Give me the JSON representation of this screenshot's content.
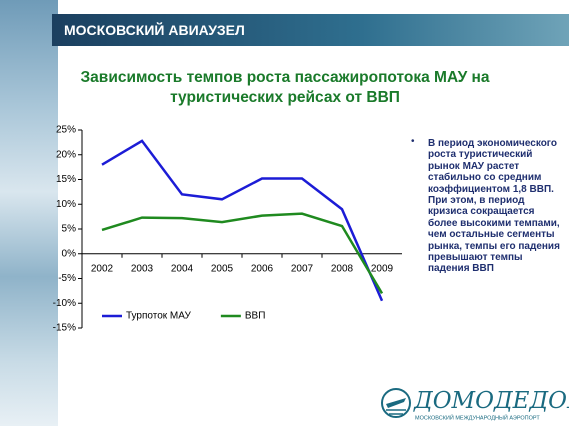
{
  "header": {
    "title": "МОСКОВСКИЙ АВИАУЗЕЛ"
  },
  "chart_data": {
    "type": "line",
    "title": "Зависимость темпов роста пассажиропотока МАУ на туристических рейсах  от ВВП",
    "categories": [
      "2002",
      "2003",
      "2004",
      "2005",
      "2006",
      "2007",
      "2008",
      "2009"
    ],
    "series": [
      {
        "name": "Турпоток МАУ",
        "color": "#1c1cd6",
        "values": [
          18,
          22.8,
          12,
          11,
          15.2,
          15.2,
          9,
          -9.5
        ]
      },
      {
        "name": "ВВП",
        "color": "#1f8a1f",
        "values": [
          4.8,
          7.3,
          7.2,
          6.4,
          7.7,
          8.1,
          5.6,
          -8
        ]
      }
    ],
    "ylim": [
      -15,
      25
    ],
    "yticks": [
      {
        "value": 25,
        "label": "25%"
      },
      {
        "value": 20,
        "label": "20%"
      },
      {
        "value": 15,
        "label": "15%"
      },
      {
        "value": 10,
        "label": "10%"
      },
      {
        "value": 5,
        "label": "5%"
      },
      {
        "value": 0,
        "label": "0%"
      },
      {
        "value": -5,
        "label": "-5%"
      },
      {
        "value": -10,
        "label": "-10%"
      },
      {
        "value": -15,
        "label": "-15%"
      }
    ],
    "grid": false,
    "legend": "bottom"
  },
  "note": "В период экономического роста туристический рынок МАУ  растет стабильно со средним коэффициентом 1,8 ВВП. При этом, в период кризиса сокращается более высокими темпами, чем остальные сегменты рынка, темпы его падения превышают темпы падения ВВП",
  "logo": {
    "name": "ДОМОДЕДОВО",
    "subtitle": "МОСКОВСКИЙ МЕЖДУНАРОДНЫЙ АЭРОПОРТ"
  }
}
